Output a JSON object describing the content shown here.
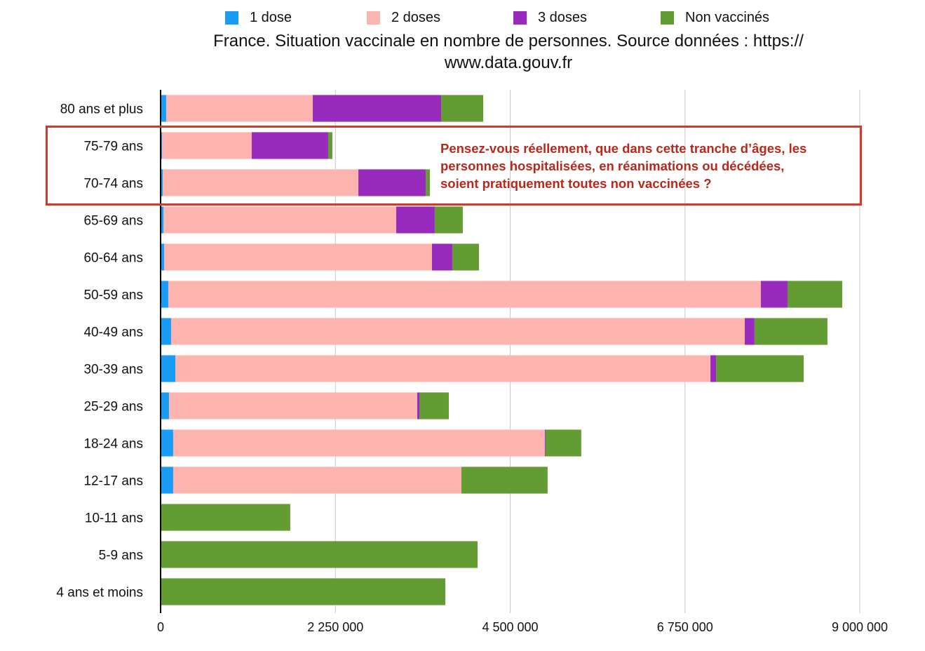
{
  "chart_data": {
    "type": "bar",
    "orientation": "horizontal",
    "stacked": true,
    "title": "France. Situation vaccinale en nombre de personnes. Source données : https:// www.data.gouv.fr",
    "title_lines": [
      "France. Situation vaccinale en nombre de personnes. Source données : https://",
      "www.data.gouv.fr"
    ],
    "xlabel": "",
    "ylabel": "",
    "xlim": [
      0,
      9000000
    ],
    "xticks": [
      0,
      2250000,
      4500000,
      6750000,
      9000000
    ],
    "xtick_labels": [
      "0",
      "2 250 000",
      "4 500 000",
      "6 750 000",
      "9 000 000"
    ],
    "grid": true,
    "legend_position": "top",
    "categories": [
      "80 ans et plus",
      "75-79 ans",
      "70-74 ans",
      "65-69 ans",
      "60-64 ans",
      "50-59 ans",
      "40-49 ans",
      "30-39 ans",
      "25-29 ans",
      "18-24 ans",
      "12-17 ans",
      "10-11 ans",
      "5-9 ans",
      "4 ans et moins"
    ],
    "series": [
      {
        "name": "1 dose",
        "color": "#1a9bf5",
        "values": [
          72000,
          18000,
          27000,
          36000,
          45000,
          99000,
          135000,
          190000,
          108000,
          162000,
          162000,
          9000,
          0,
          0
        ]
      },
      {
        "name": "2 doses",
        "color": "#fdb3ae",
        "values": [
          1887000,
          1155000,
          2519000,
          2997000,
          3448000,
          7628000,
          7384000,
          6888000,
          3196000,
          4784000,
          3710000,
          0,
          0,
          0
        ]
      },
      {
        "name": "3 doses",
        "color": "#982bbe",
        "values": [
          1652000,
          984000,
          867000,
          496000,
          262000,
          343000,
          126000,
          72000,
          27000,
          9000,
          0,
          0,
          0,
          0
        ]
      },
      {
        "name": "Non vaccinés",
        "color": "#649c34",
        "values": [
          542000,
          54000,
          54000,
          361000,
          343000,
          704000,
          939000,
          1128000,
          379000,
          460000,
          1110000,
          1660000,
          4080000,
          3665000
        ]
      }
    ],
    "annotation": {
      "text_lines": [
        "Pensez-vous réellement, que dans cette tranche d’âges, les",
        "personnes hospitalisées, en réanimations ou décédées,",
        "soient pratiquement toutes non vaccinées ?"
      ],
      "highlighted_categories": [
        "75-79 ans",
        "70-74 ans"
      ],
      "color": "#d03a2a"
    }
  }
}
